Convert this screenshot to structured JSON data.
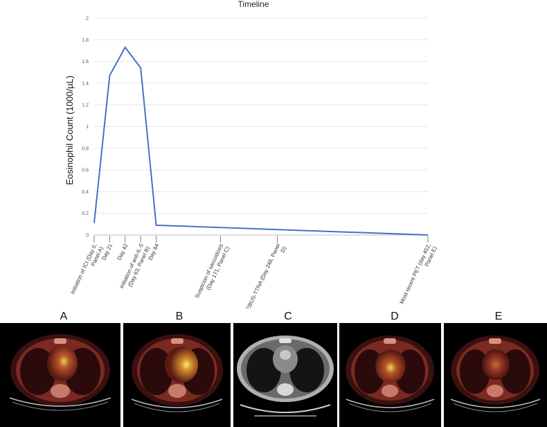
{
  "chart_data": {
    "type": "line",
    "title": "Timeline",
    "ylabel": "Eosinophil Count (1000/µL)",
    "xlabel": "",
    "ylim": [
      0,
      2
    ],
    "yticks": [
      0,
      0.2,
      0.4,
      0.6,
      0.8,
      1,
      1.2,
      1.4,
      1.6,
      1.8,
      2
    ],
    "xlim": [
      0,
      452
    ],
    "grid": true,
    "x": [
      0,
      21,
      42,
      63,
      84,
      452
    ],
    "values": [
      0.11,
      1.47,
      1.73,
      1.54,
      0.09,
      0.0
    ],
    "line_color": "#4472c4",
    "x_labels": [
      {
        "x": 0,
        "text": "Initiation of ICI (Day 0, Panel A)"
      },
      {
        "x": 21,
        "text": "Day 21"
      },
      {
        "x": 42,
        "text": "Day 42"
      },
      {
        "x": 63,
        "text": "Initiation of anti-IL-5 (Day 63, Panel B)"
      },
      {
        "x": 84,
        "text": "Day 84"
      },
      {
        "x": 171,
        "text": "Suspicion of sarcoidosis (Day 171, Panel C)"
      },
      {
        "x": 248,
        "text": "EBUS-TTNA (Day 248, Panel D)"
      },
      {
        "x": 452,
        "text": "Most recent PET (day 452, Panel E)"
      }
    ]
  },
  "panels": [
    {
      "label": "A",
      "modality": "PET-CT"
    },
    {
      "label": "B",
      "modality": "PET-CT"
    },
    {
      "label": "C",
      "modality": "CT"
    },
    {
      "label": "D",
      "modality": "PET-CT"
    },
    {
      "label": "E",
      "modality": "PET-CT"
    }
  ]
}
